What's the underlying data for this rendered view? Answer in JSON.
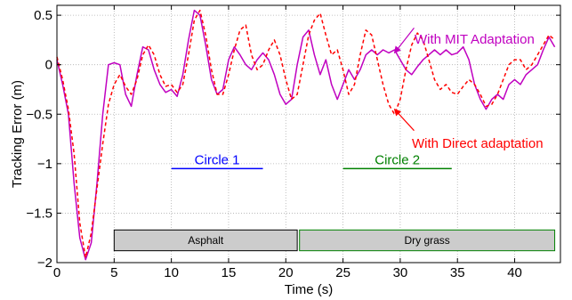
{
  "chart_data": {
    "type": "line",
    "xlabel": "Time (s)",
    "ylabel": "Tracking Error (m)",
    "xlim": [
      0,
      44
    ],
    "ylim": [
      -2,
      0.6
    ],
    "grid": true,
    "x_ticks": [
      0,
      5,
      10,
      15,
      20,
      25,
      30,
      35,
      40
    ],
    "y_ticks": [
      0.5,
      0,
      -0.5,
      -1,
      -1.5,
      -2
    ],
    "x_tick_labels": [
      "0",
      "5",
      "10",
      "15",
      "20",
      "25",
      "30",
      "35",
      "40"
    ],
    "y_tick_labels": [
      "0.5",
      "0",
      "−0.5",
      "−1",
      "−1.5",
      "−2"
    ],
    "series": [
      {
        "name": "With MIT Adaptation",
        "color": "#c000c0",
        "style": "solid",
        "points": [
          [
            0,
            0.05
          ],
          [
            0.5,
            -0.2
          ],
          [
            1,
            -0.5
          ],
          [
            1.5,
            -1.2
          ],
          [
            2,
            -1.75
          ],
          [
            2.5,
            -1.97
          ],
          [
            3,
            -1.8
          ],
          [
            3.5,
            -1.2
          ],
          [
            4,
            -0.5
          ],
          [
            4.5,
            0.0
          ],
          [
            5,
            0.02
          ],
          [
            5.5,
            0.0
          ],
          [
            6,
            -0.3
          ],
          [
            6.5,
            -0.42
          ],
          [
            7,
            -0.1
          ],
          [
            7.5,
            0.18
          ],
          [
            8,
            0.15
          ],
          [
            8.5,
            -0.05
          ],
          [
            9,
            -0.2
          ],
          [
            9.5,
            -0.28
          ],
          [
            10,
            -0.25
          ],
          [
            10.5,
            -0.32
          ],
          [
            11,
            -0.1
          ],
          [
            11.5,
            0.25
          ],
          [
            12,
            0.55
          ],
          [
            12.5,
            0.5
          ],
          [
            13,
            0.2
          ],
          [
            13.5,
            -0.15
          ],
          [
            14,
            -0.3
          ],
          [
            14.5,
            -0.25
          ],
          [
            15,
            0.05
          ],
          [
            15.5,
            0.18
          ],
          [
            16,
            0.1
          ],
          [
            16.5,
            0.0
          ],
          [
            17,
            -0.05
          ],
          [
            17.5,
            0.05
          ],
          [
            18,
            0.12
          ],
          [
            18.5,
            0.05
          ],
          [
            19,
            -0.1
          ],
          [
            19.5,
            -0.3
          ],
          [
            20,
            -0.4
          ],
          [
            20.5,
            -0.35
          ],
          [
            21,
            0.0
          ],
          [
            21.5,
            0.28
          ],
          [
            22,
            0.35
          ],
          [
            22.5,
            0.1
          ],
          [
            23,
            -0.1
          ],
          [
            23.5,
            0.05
          ],
          [
            24,
            -0.2
          ],
          [
            24.5,
            -0.35
          ],
          [
            25,
            -0.2
          ],
          [
            25.5,
            -0.05
          ],
          [
            26,
            -0.15
          ],
          [
            26.5,
            -0.05
          ],
          [
            27,
            0.1
          ],
          [
            27.5,
            0.15
          ],
          [
            28,
            0.1
          ],
          [
            28.5,
            0.15
          ],
          [
            29,
            0.12
          ],
          [
            29.5,
            0.15
          ],
          [
            30,
            0.05
          ],
          [
            30.5,
            -0.05
          ],
          [
            31,
            -0.1
          ],
          [
            31.5,
            -0.02
          ],
          [
            32,
            0.05
          ],
          [
            32.5,
            0.1
          ],
          [
            33,
            0.15
          ],
          [
            33.5,
            0.1
          ],
          [
            34,
            0.15
          ],
          [
            34.5,
            0.1
          ],
          [
            35,
            0.12
          ],
          [
            35.5,
            0.18
          ],
          [
            36,
            0.05
          ],
          [
            36.5,
            -0.2
          ],
          [
            37,
            -0.35
          ],
          [
            37.5,
            -0.45
          ],
          [
            38,
            -0.35
          ],
          [
            38.5,
            -0.3
          ],
          [
            39,
            -0.35
          ],
          [
            39.5,
            -0.2
          ],
          [
            40,
            -0.15
          ],
          [
            40.5,
            -0.2
          ],
          [
            41,
            -0.1
          ],
          [
            41.5,
            -0.05
          ],
          [
            42,
            0.0
          ],
          [
            42.5,
            0.15
          ],
          [
            43,
            0.28
          ],
          [
            43.5,
            0.18
          ]
        ]
      },
      {
        "name": "With Direct adaptation",
        "color": "#ff0000",
        "style": "dashed",
        "points": [
          [
            0,
            0.08
          ],
          [
            0.5,
            -0.15
          ],
          [
            1,
            -0.45
          ],
          [
            1.5,
            -0.9
          ],
          [
            2,
            -1.6
          ],
          [
            2.5,
            -1.95
          ],
          [
            3,
            -1.7
          ],
          [
            3.5,
            -1.25
          ],
          [
            4,
            -0.8
          ],
          [
            4.5,
            -0.4
          ],
          [
            5,
            -0.2
          ],
          [
            5.5,
            -0.1
          ],
          [
            6,
            -0.22
          ],
          [
            6.5,
            -0.3
          ],
          [
            7,
            -0.15
          ],
          [
            7.5,
            0.1
          ],
          [
            8,
            0.2
          ],
          [
            8.5,
            0.1
          ],
          [
            9,
            -0.1
          ],
          [
            9.5,
            -0.22
          ],
          [
            10,
            -0.2
          ],
          [
            10.5,
            -0.28
          ],
          [
            11,
            -0.2
          ],
          [
            11.5,
            0.1
          ],
          [
            12,
            0.45
          ],
          [
            12.5,
            0.55
          ],
          [
            13,
            0.3
          ],
          [
            13.5,
            -0.05
          ],
          [
            14,
            -0.3
          ],
          [
            14.5,
            -0.3
          ],
          [
            15,
            -0.1
          ],
          [
            15.5,
            0.15
          ],
          [
            16,
            0.35
          ],
          [
            16.5,
            0.4
          ],
          [
            17,
            0.1
          ],
          [
            17.5,
            -0.05
          ],
          [
            18,
            0.0
          ],
          [
            18.5,
            0.15
          ],
          [
            19,
            0.25
          ],
          [
            19.5,
            0.1
          ],
          [
            20,
            -0.15
          ],
          [
            20.5,
            -0.35
          ],
          [
            21,
            -0.3
          ],
          [
            21.5,
            0.0
          ],
          [
            22,
            0.3
          ],
          [
            22.5,
            0.45
          ],
          [
            23,
            0.52
          ],
          [
            23.5,
            0.3
          ],
          [
            24,
            0.1
          ],
          [
            24.5,
            0.15
          ],
          [
            25,
            -0.05
          ],
          [
            25.5,
            -0.3
          ],
          [
            26,
            -0.2
          ],
          [
            26.5,
            0.1
          ],
          [
            27,
            0.35
          ],
          [
            27.5,
            0.3
          ],
          [
            28,
            0.05
          ],
          [
            28.5,
            -0.2
          ],
          [
            29,
            -0.4
          ],
          [
            29.5,
            -0.5
          ],
          [
            30,
            -0.35
          ],
          [
            30.5,
            -0.05
          ],
          [
            31,
            0.2
          ],
          [
            31.5,
            0.32
          ],
          [
            32,
            0.25
          ],
          [
            32.5,
            0.05
          ],
          [
            33,
            -0.15
          ],
          [
            33.5,
            -0.25
          ],
          [
            34,
            -0.2
          ],
          [
            34.5,
            -0.28
          ],
          [
            35,
            -0.3
          ],
          [
            35.5,
            -0.22
          ],
          [
            36,
            -0.15
          ],
          [
            36.5,
            -0.2
          ],
          [
            37,
            -0.3
          ],
          [
            37.5,
            -0.42
          ],
          [
            38,
            -0.4
          ],
          [
            38.5,
            -0.3
          ],
          [
            39,
            -0.15
          ],
          [
            39.5,
            0.0
          ],
          [
            40,
            0.05
          ],
          [
            40.5,
            0.05
          ],
          [
            41,
            -0.05
          ],
          [
            41.5,
            0.0
          ],
          [
            42,
            0.1
          ],
          [
            42.5,
            0.2
          ],
          [
            43,
            0.3
          ],
          [
            43.5,
            0.25
          ]
        ]
      }
    ],
    "annotations": [
      {
        "text": "With MIT Adaptation",
        "color": "#c000c0",
        "arrow_to": [
          29.5,
          0.12
        ]
      },
      {
        "text": "With Direct adaptation",
        "color": "#ff0000",
        "arrow_to": [
          29.5,
          -0.45
        ]
      },
      {
        "text": "Circle 1",
        "color": "#0000ff",
        "segment": [
          10,
          18
        ],
        "y": -1.05
      },
      {
        "text": "Circle 2",
        "color": "#008000",
        "segment": [
          25,
          34.5
        ],
        "y": -1.05
      }
    ],
    "regions": [
      {
        "text": "Asphalt",
        "x_range": [
          5,
          21
        ],
        "y_range": [
          -1.88,
          -1.67
        ],
        "fill": "#cccccc",
        "stroke": "#000000"
      },
      {
        "text": "Dry grass",
        "x_range": [
          21.2,
          43.5
        ],
        "y_range": [
          -1.88,
          -1.67
        ],
        "fill": "#cccccc",
        "stroke": "#008000"
      }
    ]
  }
}
